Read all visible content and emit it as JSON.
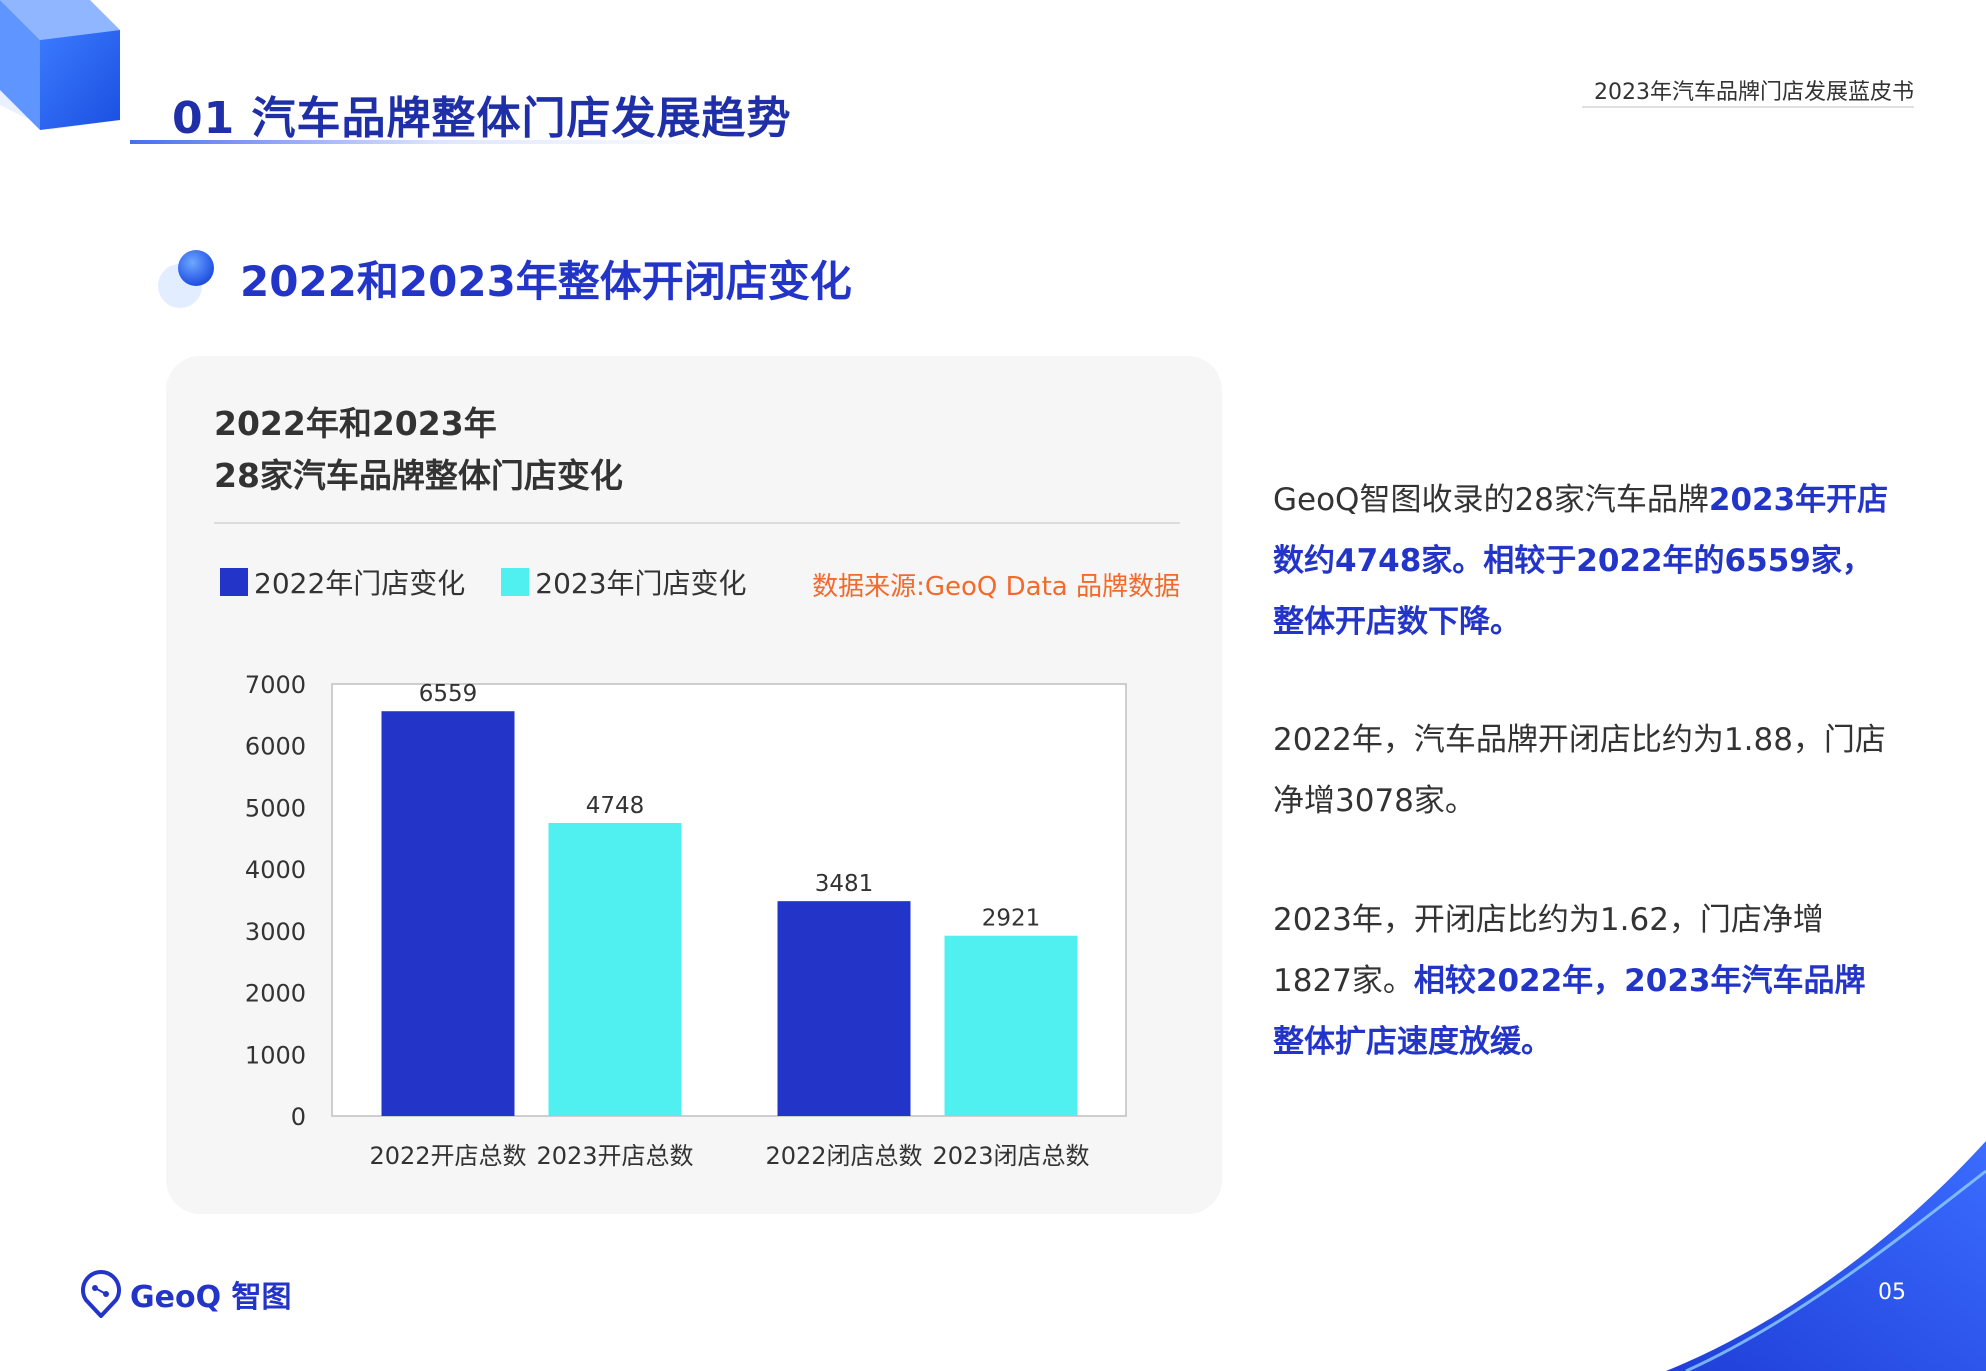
{
  "header": {
    "section_title": "01 汽车品牌整体门店发展趋势",
    "report_name": "2023年汽车品牌门店发展蓝皮书"
  },
  "subtitle": "2022和2023年整体开闭店变化",
  "panel": {
    "title_line1": "2022年和2023年",
    "title_line2": "28家汽车品牌整体门店变化",
    "source": "数据来源:GeoQ Data 品牌数据"
  },
  "chart_data": {
    "type": "bar",
    "categories": [
      "2022开店总数",
      "2023开店总数",
      "2022闭店总数",
      "2023闭店总数"
    ],
    "values": [
      6559,
      4748,
      3481,
      2921
    ],
    "legend": [
      {
        "name": "2022年门店变化",
        "color": "#2334c9"
      },
      {
        "name": "2023年门店变化",
        "color": "#50f0f0"
      }
    ],
    "bar_colors": [
      "#2334c9",
      "#50f0f0",
      "#2334c9",
      "#50f0f0"
    ],
    "ylim": [
      0,
      7000
    ],
    "yticks": [
      0,
      1000,
      2000,
      3000,
      4000,
      5000,
      6000,
      7000
    ],
    "data_labels": true,
    "grid": false
  },
  "text": {
    "p1_a": "GeoQ智图收录的28家汽车品牌",
    "p1_b": "2023年开店数约4748家。相较于2022年的6559家，整体开店数下降。",
    "p2": "2022年，汽车品牌开闭店比约为1.88，门店净增3078家。",
    "p3_a": "2023年，开闭店比约为1.62，门店净增1827家。",
    "p3_b": "相较2022年，2023年汽车品牌整体扩店速度放缓。"
  },
  "footer": {
    "logo_text": "GeoQ 智图",
    "page_number": "05"
  },
  "colors": {
    "brand_blue": "#2334c9",
    "cyan": "#50f0f0",
    "source_orange": "#f26a2c"
  }
}
